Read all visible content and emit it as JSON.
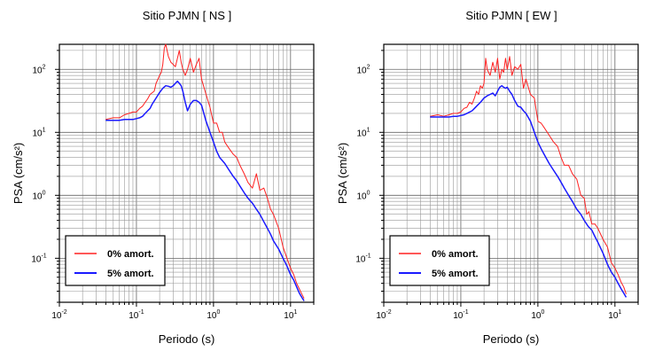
{
  "chart_data": [
    {
      "type": "line",
      "title": "Sitio PJMN [ NS ]",
      "xlabel": "Periodo (s)",
      "ylabel": "PSA (cm/s²)",
      "xscale": "log",
      "yscale": "log",
      "xlim": [
        0.01,
        20
      ],
      "ylim": [
        0.02,
        250
      ],
      "grid": true,
      "legend_position": "bottom-left",
      "x_ticks": [
        {
          "base": "10",
          "exp": "-2"
        },
        {
          "base": "10",
          "exp": "-1"
        },
        {
          "base": "10",
          "exp": "0"
        },
        {
          "base": "10",
          "exp": "1"
        }
      ],
      "y_ticks": [
        {
          "base": "10",
          "exp": "-1"
        },
        {
          "base": "10",
          "exp": "0"
        },
        {
          "base": "10",
          "exp": "1"
        },
        {
          "base": "10",
          "exp": "2"
        }
      ],
      "series": [
        {
          "name": "0% amort.",
          "color": "#ff2020",
          "x": [
            0.04,
            0.05,
            0.06,
            0.07,
            0.08,
            0.09,
            0.1,
            0.11,
            0.12,
            0.13,
            0.14,
            0.15,
            0.17,
            0.18,
            0.2,
            0.21,
            0.22,
            0.23,
            0.24,
            0.25,
            0.26,
            0.28,
            0.3,
            0.32,
            0.34,
            0.36,
            0.38,
            0.4,
            0.43,
            0.46,
            0.5,
            0.55,
            0.6,
            0.65,
            0.7,
            0.8,
            0.9,
            1.0,
            1.1,
            1.2,
            1.3,
            1.4,
            1.6,
            1.8,
            2.0,
            2.2,
            2.5,
            2.8,
            3.2,
            3.6,
            4.0,
            4.5,
            5.0,
            5.5,
            6.0,
            7.0,
            8.0,
            9.0,
            10.0,
            11.0,
            12.0,
            14.0,
            15.0
          ],
          "y": [
            16,
            17,
            17,
            19,
            20,
            21,
            21,
            24,
            26,
            30,
            34,
            40,
            45,
            60,
            80,
            90,
            120,
            220,
            250,
            200,
            160,
            130,
            120,
            110,
            150,
            200,
            130,
            100,
            80,
            100,
            150,
            90,
            120,
            150,
            70,
            40,
            25,
            14,
            14,
            10,
            10,
            7,
            5.5,
            4.5,
            4,
            3,
            2.2,
            1.6,
            1.3,
            2.2,
            1.2,
            1.3,
            0.9,
            0.6,
            0.5,
            0.3,
            0.15,
            0.1,
            0.07,
            0.055,
            0.04,
            0.027,
            0.023
          ]
        },
        {
          "name": "5% amort.",
          "color": "#1a1aff",
          "x": [
            0.04,
            0.05,
            0.06,
            0.07,
            0.08,
            0.09,
            0.1,
            0.11,
            0.12,
            0.13,
            0.14,
            0.15,
            0.16,
            0.18,
            0.2,
            0.22,
            0.24,
            0.26,
            0.28,
            0.3,
            0.32,
            0.34,
            0.36,
            0.38,
            0.4,
            0.43,
            0.46,
            0.5,
            0.55,
            0.6,
            0.65,
            0.7,
            0.8,
            0.9,
            1.0,
            1.1,
            1.2,
            1.4,
            1.6,
            1.8,
            2.0,
            2.2,
            2.5,
            2.8,
            3.2,
            3.6,
            4.0,
            4.5,
            5.0,
            5.5,
            6.0,
            7.0,
            8.0,
            9.0,
            10.0,
            11.0,
            12.0,
            13.0,
            14.0,
            15.0
          ],
          "y": [
            15.5,
            15.5,
            15.5,
            16,
            16,
            16,
            16.5,
            17,
            18,
            20,
            22,
            24,
            28,
            35,
            43,
            50,
            55,
            54,
            52,
            55,
            60,
            65,
            60,
            55,
            45,
            30,
            22,
            28,
            32,
            32,
            30,
            27,
            15,
            10,
            7,
            5,
            4,
            3.2,
            2.5,
            2,
            1.7,
            1.4,
            1.1,
            0.9,
            0.75,
            0.6,
            0.5,
            0.38,
            0.3,
            0.24,
            0.19,
            0.14,
            0.1,
            0.075,
            0.055,
            0.045,
            0.035,
            0.028,
            0.024,
            0.021
          ]
        }
      ]
    },
    {
      "type": "line",
      "title": "Sitio PJMN [ EW ]",
      "xlabel": "Periodo (s)",
      "ylabel": "PSA (cm/s²)",
      "xscale": "log",
      "yscale": "log",
      "xlim": [
        0.01,
        20
      ],
      "ylim": [
        0.02,
        250
      ],
      "grid": true,
      "legend_position": "bottom-left",
      "x_ticks": [
        {
          "base": "10",
          "exp": "-2"
        },
        {
          "base": "10",
          "exp": "-1"
        },
        {
          "base": "10",
          "exp": "0"
        },
        {
          "base": "10",
          "exp": "1"
        }
      ],
      "y_ticks": [
        {
          "base": "10",
          "exp": "-1"
        },
        {
          "base": "10",
          "exp": "0"
        },
        {
          "base": "10",
          "exp": "1"
        },
        {
          "base": "10",
          "exp": "2"
        }
      ],
      "series": [
        {
          "name": "0% amort.",
          "color": "#ff2020",
          "x": [
            0.04,
            0.05,
            0.06,
            0.07,
            0.08,
            0.09,
            0.1,
            0.11,
            0.12,
            0.13,
            0.14,
            0.15,
            0.16,
            0.17,
            0.18,
            0.19,
            0.2,
            0.21,
            0.22,
            0.24,
            0.26,
            0.28,
            0.3,
            0.32,
            0.34,
            0.36,
            0.38,
            0.4,
            0.43,
            0.46,
            0.5,
            0.55,
            0.6,
            0.65,
            0.7,
            0.8,
            0.9,
            1.0,
            1.1,
            1.2,
            1.4,
            1.6,
            1.8,
            2.0,
            2.2,
            2.5,
            2.8,
            3.2,
            3.6,
            4.0,
            4.3,
            4.6,
            5.0,
            5.5,
            6.0,
            7.0,
            8.0,
            9.0,
            10.0,
            11.0,
            12.0,
            13.0,
            14.0
          ],
          "y": [
            18,
            19,
            18,
            19,
            20,
            20,
            21,
            24,
            25,
            30,
            28,
            35,
            45,
            40,
            55,
            50,
            60,
            150,
            100,
            80,
            130,
            90,
            150,
            70,
            100,
            90,
            150,
            100,
            160,
            80,
            110,
            100,
            120,
            50,
            70,
            40,
            35,
            15,
            14,
            12,
            9,
            7,
            6,
            4,
            3,
            3,
            2.2,
            1.8,
            1,
            0.9,
            0.5,
            0.55,
            0.35,
            0.35,
            0.3,
            0.2,
            0.15,
            0.085,
            0.07,
            0.055,
            0.042,
            0.035,
            0.027
          ]
        },
        {
          "name": "5% amort.",
          "color": "#1a1aff",
          "x": [
            0.04,
            0.05,
            0.06,
            0.07,
            0.08,
            0.09,
            0.1,
            0.11,
            0.12,
            0.13,
            0.14,
            0.15,
            0.16,
            0.18,
            0.2,
            0.22,
            0.24,
            0.26,
            0.28,
            0.3,
            0.32,
            0.34,
            0.36,
            0.38,
            0.4,
            0.43,
            0.46,
            0.5,
            0.55,
            0.6,
            0.65,
            0.7,
            0.8,
            0.9,
            1.0,
            1.1,
            1.2,
            1.4,
            1.6,
            1.8,
            2.0,
            2.2,
            2.5,
            2.8,
            3.2,
            3.6,
            4.0,
            4.5,
            5.0,
            5.5,
            6.0,
            7.0,
            8.0,
            9.0,
            10.0,
            11.0,
            12.0,
            13.0,
            14.0
          ],
          "y": [
            17.5,
            17.5,
            17.5,
            17.5,
            18,
            18,
            18.5,
            19,
            20,
            21,
            22,
            24,
            26,
            30,
            35,
            38,
            40,
            42,
            38,
            45,
            52,
            55,
            52,
            50,
            52,
            45,
            40,
            32,
            26,
            25,
            22,
            20,
            15,
            10,
            7,
            5.5,
            4.5,
            3.2,
            2.5,
            2,
            1.6,
            1.3,
            1,
            0.8,
            0.6,
            0.5,
            0.4,
            0.32,
            0.28,
            0.22,
            0.18,
            0.12,
            0.08,
            0.06,
            0.05,
            0.04,
            0.033,
            0.028,
            0.024
          ]
        }
      ]
    }
  ]
}
